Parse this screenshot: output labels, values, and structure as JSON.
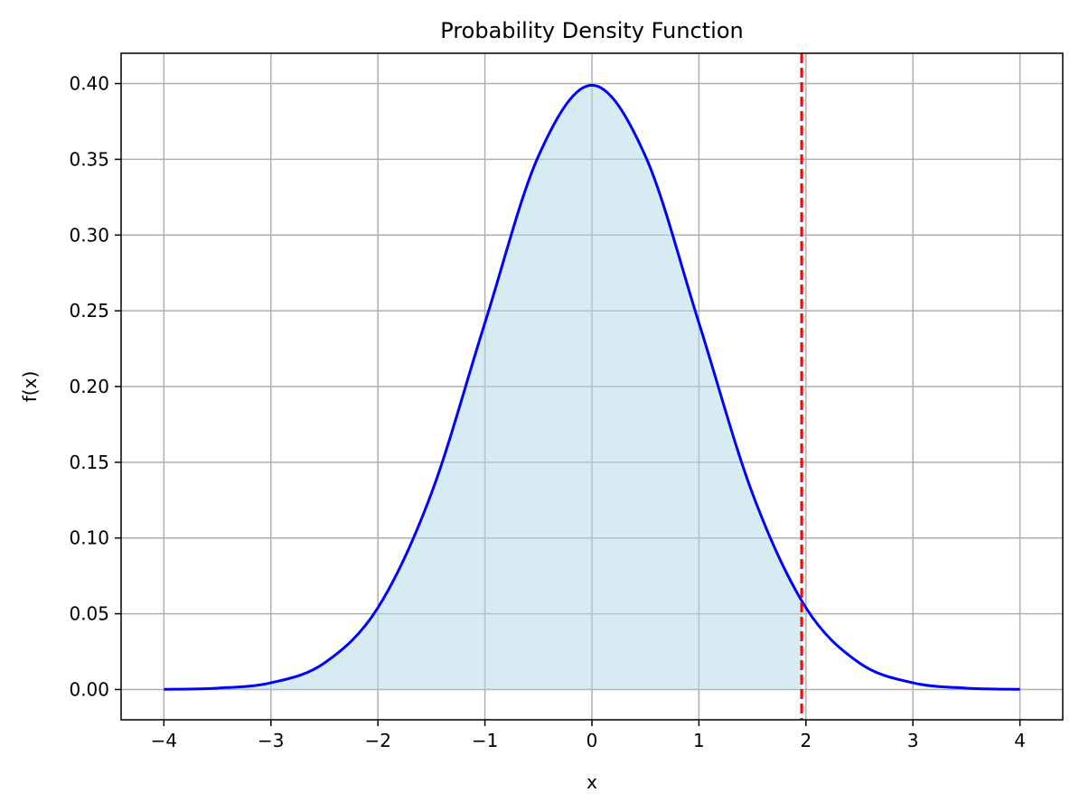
{
  "chart_data": {
    "type": "line",
    "title": "Probability Density Function",
    "xlabel": "x",
    "ylabel": "f(x)",
    "xlim": [
      -4.4,
      4.4
    ],
    "ylim": [
      -0.02,
      0.42
    ],
    "x_ticks": [
      -4,
      -3,
      -2,
      -1,
      0,
      1,
      2,
      3,
      4
    ],
    "x_tick_labels": [
      "−4",
      "−3",
      "−2",
      "−1",
      "0",
      "1",
      "2",
      "3",
      "4"
    ],
    "y_ticks": [
      0.0,
      0.05,
      0.1,
      0.15,
      0.2,
      0.25,
      0.3,
      0.35,
      0.4
    ],
    "y_tick_labels": [
      "0.00",
      "0.05",
      "0.10",
      "0.15",
      "0.20",
      "0.25",
      "0.30",
      "0.35",
      "0.40"
    ],
    "grid": true,
    "series": [
      {
        "x": [
          -4.0,
          -3.5,
          -3.0,
          -2.5,
          -2.0,
          -1.5,
          -1.0,
          -0.5,
          0.0,
          0.5,
          1.0,
          1.5,
          2.0,
          2.5,
          3.0,
          3.5,
          4.0
        ],
        "y": [
          0.0001,
          0.0009,
          0.0044,
          0.0175,
          0.054,
          0.1295,
          0.242,
          0.3521,
          0.3989,
          0.3521,
          0.242,
          0.1295,
          0.054,
          0.0175,
          0.0044,
          0.0009,
          0.0001
        ],
        "color": "#0000ff"
      }
    ],
    "shaded_region": {
      "from": -4.0,
      "to": 1.96,
      "color": "#add8e6"
    },
    "vertical_line": {
      "x": 1.96,
      "color": "#ff0000",
      "style": "dashed"
    }
  }
}
